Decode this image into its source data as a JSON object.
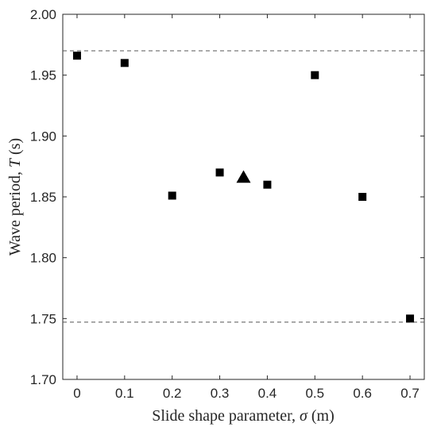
{
  "chart_data": {
    "type": "scatter",
    "title": "",
    "xlabel_text": "Slide shape parameter, ",
    "xlabel_symbol": "σ",
    "xlabel_unit": " (m)",
    "ylabel_text": "Wave period, ",
    "ylabel_symbol": "T",
    "ylabel_unit": " (s)",
    "xlim": [
      -0.03,
      0.73
    ],
    "ylim": [
      1.7,
      2.0
    ],
    "x_ticks": [
      0,
      0.1,
      0.2,
      0.3,
      0.4,
      0.5,
      0.6,
      0.7
    ],
    "x_tick_labels": [
      "0",
      "0.1",
      "0.2",
      "0.3",
      "0.4",
      "0.5",
      "0.6",
      "0.7"
    ],
    "y_ticks": [
      1.7,
      1.75,
      1.8,
      1.85,
      1.9,
      1.95,
      2.0
    ],
    "y_tick_labels": [
      "1.70",
      "1.75",
      "1.80",
      "1.85",
      "1.90",
      "1.95",
      "2.00"
    ],
    "grid": false,
    "series": [
      {
        "marker": "square",
        "color": "#000000",
        "x": [
          0,
          0.1,
          0.2,
          0.3,
          0.4,
          0.5,
          0.6,
          0.7
        ],
        "y": [
          1.966,
          1.96,
          1.851,
          1.87,
          1.86,
          1.95,
          1.85,
          1.75
        ]
      },
      {
        "marker": "triangle",
        "color": "#000000",
        "x": [
          0.35
        ],
        "y": [
          1.866
        ]
      }
    ],
    "reference_lines": [
      {
        "orientation": "horizontal",
        "y": 1.97,
        "style": "dashed",
        "color": "#555555"
      },
      {
        "orientation": "horizontal",
        "y": 1.747,
        "style": "dashed",
        "color": "#555555"
      }
    ]
  }
}
